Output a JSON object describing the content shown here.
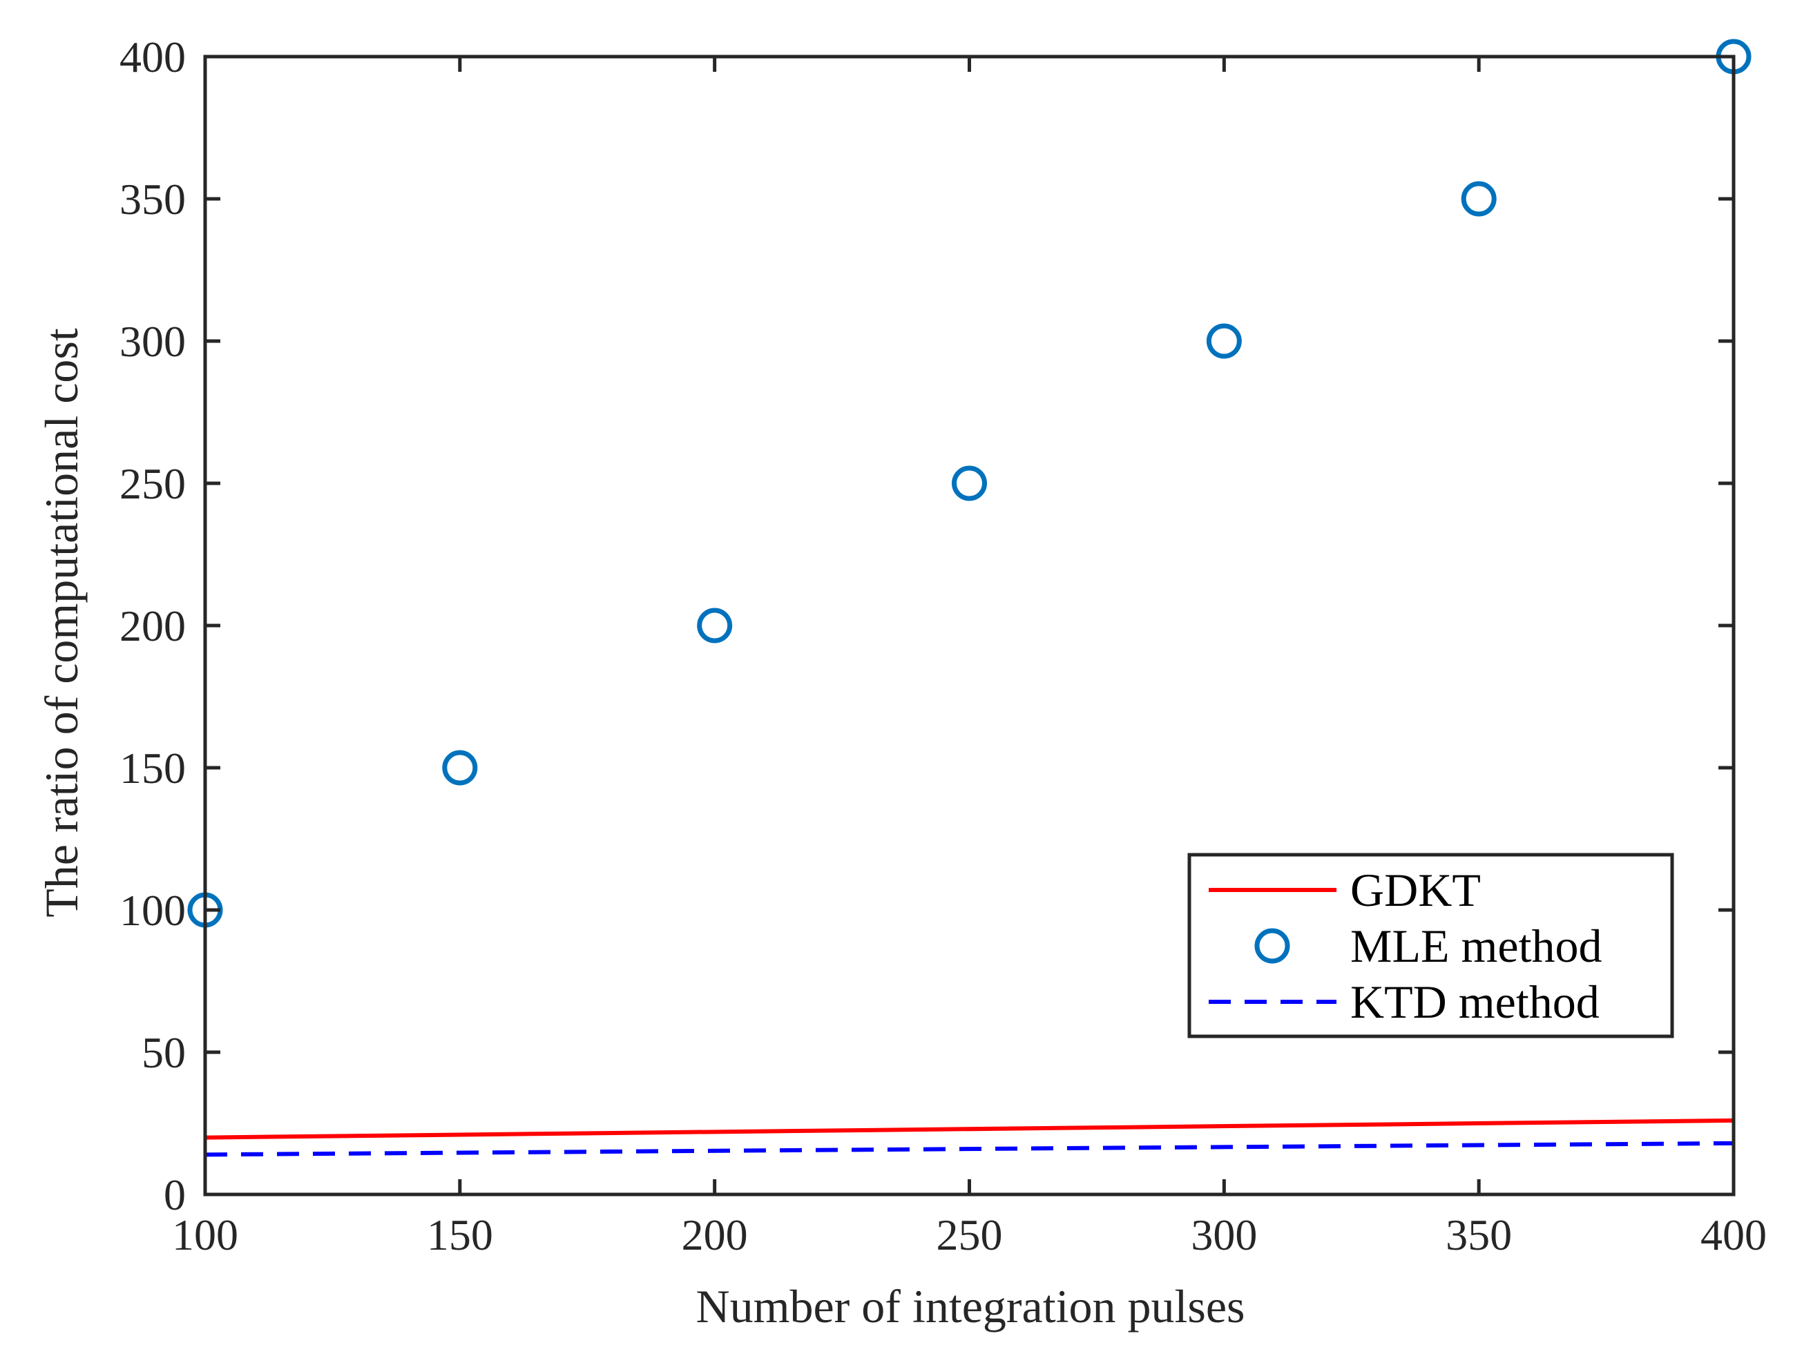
{
  "chart_data": {
    "type": "line",
    "title": "",
    "xlabel": "Number of integration pulses",
    "ylabel": "The ratio of computational cost",
    "xlim": [
      100,
      400
    ],
    "ylim": [
      0,
      400
    ],
    "xticks": [
      100,
      150,
      200,
      250,
      300,
      350,
      400
    ],
    "yticks": [
      0,
      50,
      100,
      150,
      200,
      250,
      300,
      350,
      400
    ],
    "xtick_labels": [
      "100",
      "150",
      "200",
      "250",
      "300",
      "350",
      "400"
    ],
    "ytick_labels": [
      "0",
      "50",
      "100",
      "150",
      "200",
      "250",
      "300",
      "350",
      "400"
    ],
    "grid": false,
    "legend_position": "lower-right",
    "series": [
      {
        "name": "GDKT",
        "style": "solid-line",
        "color": "#ff0000",
        "x": [
          100,
          400
        ],
        "y": [
          20,
          26
        ]
      },
      {
        "name": "MLE method",
        "style": "circle-markers",
        "color": "#0072bd",
        "x": [
          100,
          150,
          200,
          250,
          300,
          350,
          400
        ],
        "y": [
          100,
          150,
          200,
          250,
          300,
          350,
          400
        ]
      },
      {
        "name": "KTD method",
        "style": "dashed-line",
        "color": "#0000ff",
        "x": [
          100,
          400
        ],
        "y": [
          14,
          18
        ]
      }
    ]
  }
}
